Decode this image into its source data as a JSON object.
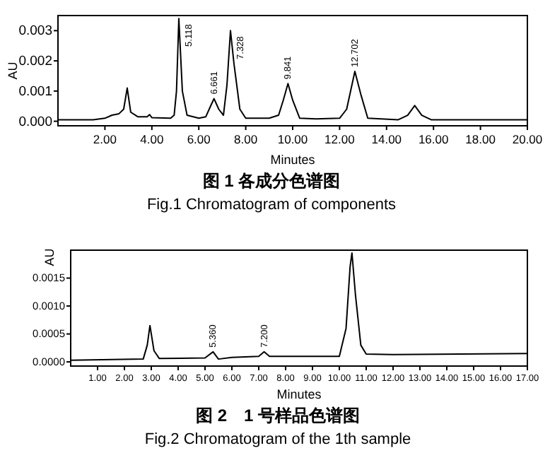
{
  "chart_data": [
    {
      "type": "line",
      "title": "图 1 各成分色谱图",
      "subtitle": "Fig.1  Chromatogram of components",
      "xlabel": "Minutes",
      "ylabel": "AU",
      "xlim": [
        0,
        20
      ],
      "ylim": [
        -0.00015,
        0.0035
      ],
      "xticks": [
        {
          "value": 2,
          "label": "2.00"
        },
        {
          "value": 4,
          "label": "4.00"
        },
        {
          "value": 6,
          "label": "6.00"
        },
        {
          "value": 8,
          "label": "8.00"
        },
        {
          "value": 10,
          "label": "10.00"
        },
        {
          "value": 12,
          "label": "12.00"
        },
        {
          "value": 14,
          "label": "14.00"
        },
        {
          "value": 16,
          "label": "16.00"
        },
        {
          "value": 18,
          "label": "18.00"
        },
        {
          "value": 20,
          "label": "20.00"
        }
      ],
      "yticks": [
        {
          "value": 0,
          "label": "0.000"
        },
        {
          "value": 0.001,
          "label": "0.001"
        },
        {
          "value": 0.002,
          "label": "0.002"
        },
        {
          "value": 0.003,
          "label": "0.003"
        }
      ],
      "marker": "none",
      "line_style": "solid",
      "series": [
        {
          "color": "#000000",
          "x": [
            0,
            1.5,
            2.0,
            2.3,
            2.6,
            2.8,
            2.95,
            3.1,
            3.4,
            3.8,
            3.9,
            4.0,
            4.8,
            4.95,
            5.05,
            5.15,
            5.3,
            5.5,
            6.0,
            6.3,
            6.5,
            6.65,
            6.85,
            7.05,
            7.2,
            7.35,
            7.5,
            7.75,
            8.0,
            9.0,
            9.4,
            9.6,
            9.8,
            10.0,
            10.3,
            11.0,
            12.0,
            12.3,
            12.65,
            12.9,
            13.2,
            14.5,
            14.9,
            15.2,
            15.5,
            15.9,
            20
          ],
          "values": [
            5e-05,
            5e-05,
            0.0001,
            0.0002,
            0.00025,
            0.0004,
            0.0011,
            0.0003,
            0.00015,
            0.00015,
            0.00022,
            0.00012,
            0.0001,
            0.0002,
            0.001,
            0.0034,
            0.001,
            0.0002,
            0.0001,
            0.00015,
            0.0005,
            0.00075,
            0.0004,
            0.0002,
            0.0012,
            0.003,
            0.0019,
            0.0004,
            0.0001,
            0.0001,
            0.0002,
            0.0007,
            0.00125,
            0.0007,
            0.0001,
            8e-05,
            0.0001,
            0.0004,
            0.00165,
            0.0009,
            0.0001,
            5e-05,
            0.0002,
            0.00052,
            0.0002,
            5e-05,
            5e-05
          ]
        }
      ],
      "annotations": [
        {
          "text": "5.118",
          "x": 5.15,
          "y": 0.0034
        },
        {
          "text": "6.661",
          "x": 6.65,
          "y": 0.00075
        },
        {
          "text": "7.328",
          "x": 7.35,
          "y": 0.003
        },
        {
          "text": "9.841",
          "x": 9.8,
          "y": 0.00125
        },
        {
          "text": "12.702",
          "x": 12.65,
          "y": 0.00165
        }
      ]
    },
    {
      "type": "line",
      "title": "图 2　1 号样品色谱图",
      "subtitle": "Fig.2  Chromatogram of the 1th sample",
      "xlabel": "Minutes",
      "ylabel": "AU",
      "xlim": [
        0,
        17
      ],
      "ylim": [
        -7.5e-05,
        0.002
      ],
      "xticks": [
        {
          "value": 1,
          "label": "1.00"
        },
        {
          "value": 2,
          "label": "2.00"
        },
        {
          "value": 3,
          "label": "3.00"
        },
        {
          "value": 4,
          "label": "4.00"
        },
        {
          "value": 5,
          "label": "5.00"
        },
        {
          "value": 6,
          "label": "6.00"
        },
        {
          "value": 7,
          "label": "7.00"
        },
        {
          "value": 8,
          "label": "8.00"
        },
        {
          "value": 9,
          "label": "9.00"
        },
        {
          "value": 10,
          "label": "10.00"
        },
        {
          "value": 11,
          "label": "11.00"
        },
        {
          "value": 12,
          "label": "12.00"
        },
        {
          "value": 13,
          "label": "13.00"
        },
        {
          "value": 14,
          "label": "14.00"
        },
        {
          "value": 15,
          "label": "15.00"
        },
        {
          "value": 16,
          "label": "16.00"
        },
        {
          "value": 17,
          "label": "17.00"
        }
      ],
      "yticks": [
        {
          "value": 0,
          "label": "0.0000"
        },
        {
          "value": 0.0005,
          "label": "0.0005"
        },
        {
          "value": 0.001,
          "label": "0.0010"
        },
        {
          "value": 0.0015,
          "label": "0.0015"
        }
      ],
      "marker": "none",
      "line_style": "solid",
      "series": [
        {
          "color": "#000000",
          "x": [
            0,
            2.7,
            2.85,
            2.95,
            3.1,
            3.3,
            5.0,
            5.3,
            5.5,
            6.0,
            7.0,
            7.2,
            7.4,
            10.0,
            10.25,
            10.4,
            10.47,
            10.6,
            10.8,
            11.0,
            12,
            17
          ],
          "values": [
            3e-05,
            5e-05,
            0.0003,
            0.00065,
            0.0002,
            6e-05,
            7e-05,
            0.00018,
            5e-05,
            8e-05,
            0.0001,
            0.00018,
            0.0001,
            0.0001,
            0.0006,
            0.0017,
            0.00195,
            0.0012,
            0.0003,
            0.00014,
            0.00013,
            0.00015
          ]
        }
      ],
      "annotations": [
        {
          "text": "5.360",
          "x": 5.3,
          "y": 0.00018
        },
        {
          "text": "7.200",
          "x": 7.2,
          "y": 0.00018
        }
      ]
    }
  ]
}
